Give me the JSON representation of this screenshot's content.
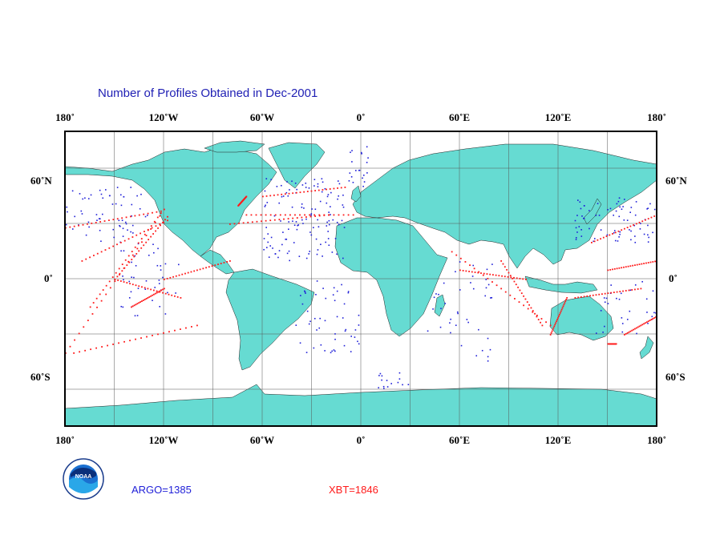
{
  "title": "Number of Profiles Obtained in Dec-2001",
  "map": {
    "projection": "equirectangular",
    "lon_range": [
      -180,
      180
    ],
    "lat_range": [
      -80,
      80
    ],
    "land_color": "#66dbd2",
    "ocean_color": "#ffffff",
    "grid_lines": true,
    "lon_ticks": [
      "180˚",
      "120˚W",
      "60˚W",
      "0˚",
      "60˚E",
      "120˚E",
      "180˚"
    ],
    "lat_ticks_left": [
      "60˚N",
      "0˚",
      "60˚S"
    ],
    "lat_ticks_right": [
      "60˚N",
      "0˚",
      "60˚S"
    ]
  },
  "series": {
    "argo": {
      "label": "ARGO=1385",
      "count": 1385,
      "color": "#1f1fd8"
    },
    "xbt": {
      "label": "XBT=1846",
      "count": 1846,
      "color": "#ff1a1a"
    }
  },
  "logo": {
    "text": "NOAA"
  }
}
